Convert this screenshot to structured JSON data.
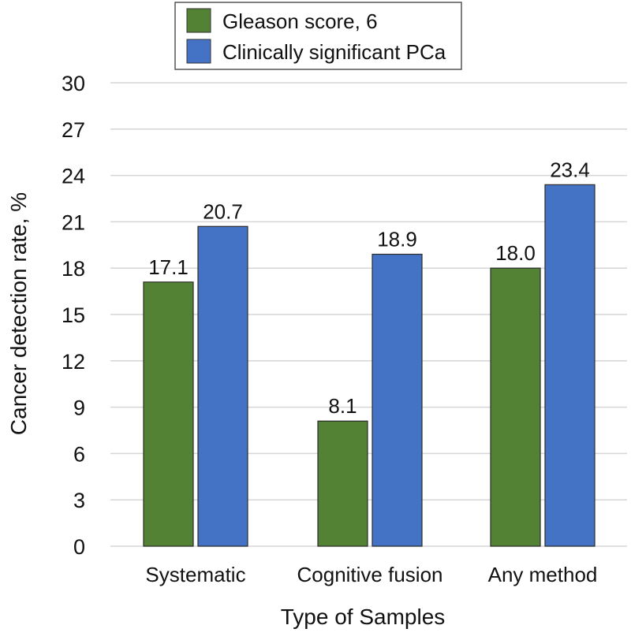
{
  "chart_data": {
    "type": "bar",
    "categories": [
      "Systematic",
      "Cognitive fusion",
      "Any method"
    ],
    "series": [
      {
        "name": "Gleason score, 6",
        "values": [
          17.1,
          8.1,
          18.0
        ],
        "color": "#548235"
      },
      {
        "name": "Clinically significant PCa",
        "values": [
          20.7,
          18.9,
          23.4
        ],
        "color": "#4472C4"
      }
    ],
    "data_labels": [
      [
        "17.1",
        "8.1",
        "18.0"
      ],
      [
        "20.7",
        "18.9",
        "23.4"
      ]
    ],
    "xlabel": "Type of Samples",
    "ylabel": "Cancer detection rate, %",
    "ylim": [
      0,
      30
    ],
    "yticks": [
      "0",
      "3",
      "6",
      "9",
      "12",
      "15",
      "18",
      "21",
      "24",
      "27",
      "30"
    ],
    "grid": true,
    "legend_position": "top-center"
  }
}
